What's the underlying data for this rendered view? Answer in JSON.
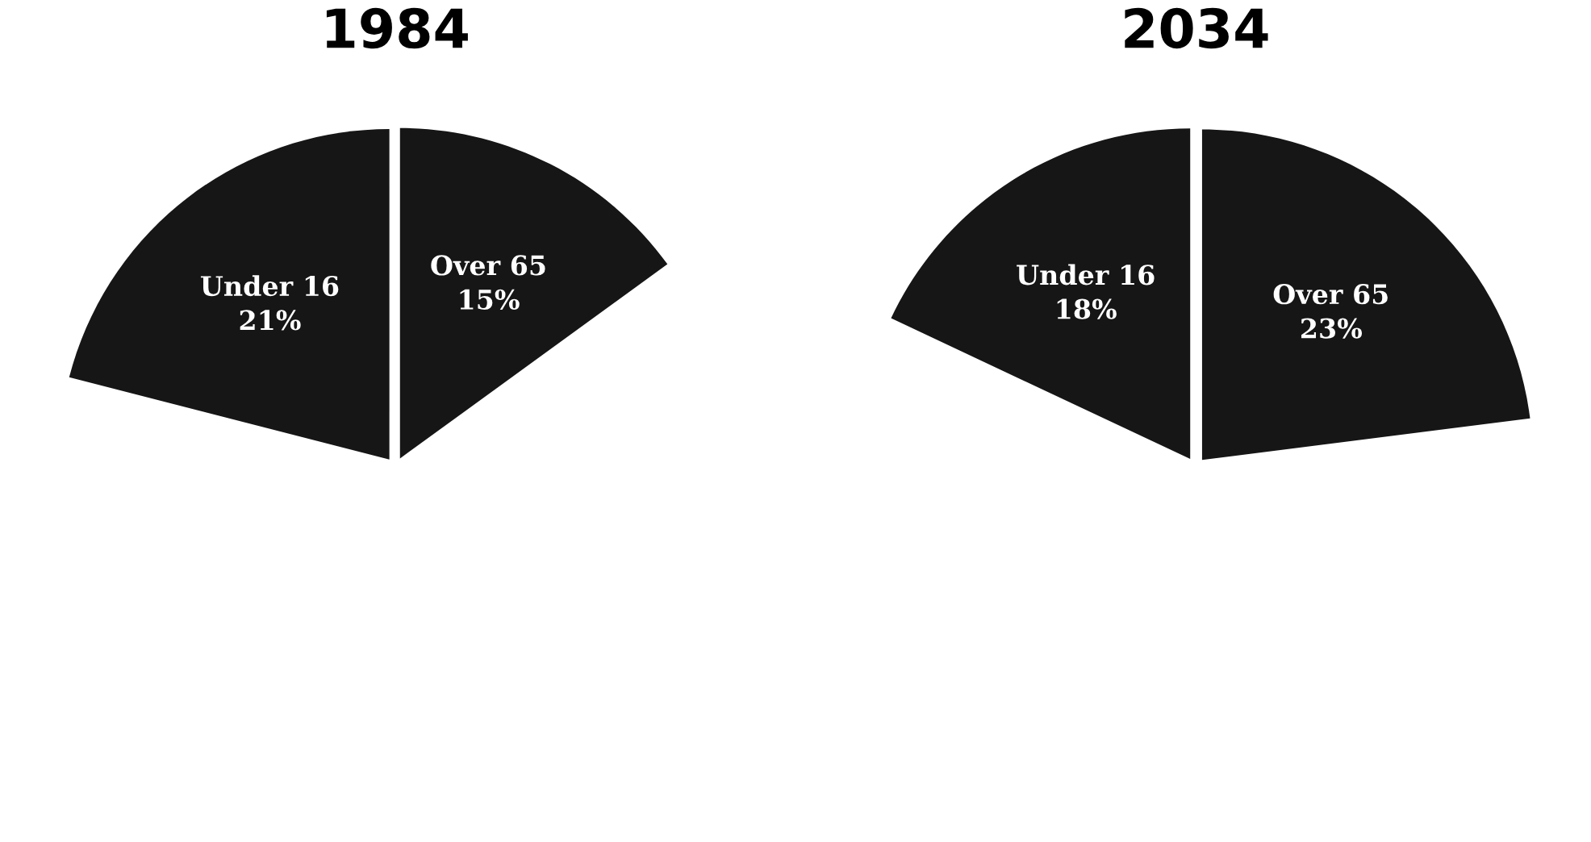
{
  "chart_data": [
    {
      "type": "pie",
      "title": "1984",
      "categories": [
        "Over 65",
        "Under 16"
      ],
      "values": [
        15,
        21
      ],
      "colors": [
        "#161616",
        "#161616"
      ],
      "value_labels": [
        "15%",
        "21%"
      ]
    },
    {
      "type": "pie",
      "title": "2034",
      "categories": [
        "Over 65",
        "Under 16"
      ],
      "values": [
        23,
        18
      ],
      "colors": [
        "#161616",
        "#161616"
      ],
      "value_labels": [
        "23%",
        "18%"
      ]
    }
  ]
}
